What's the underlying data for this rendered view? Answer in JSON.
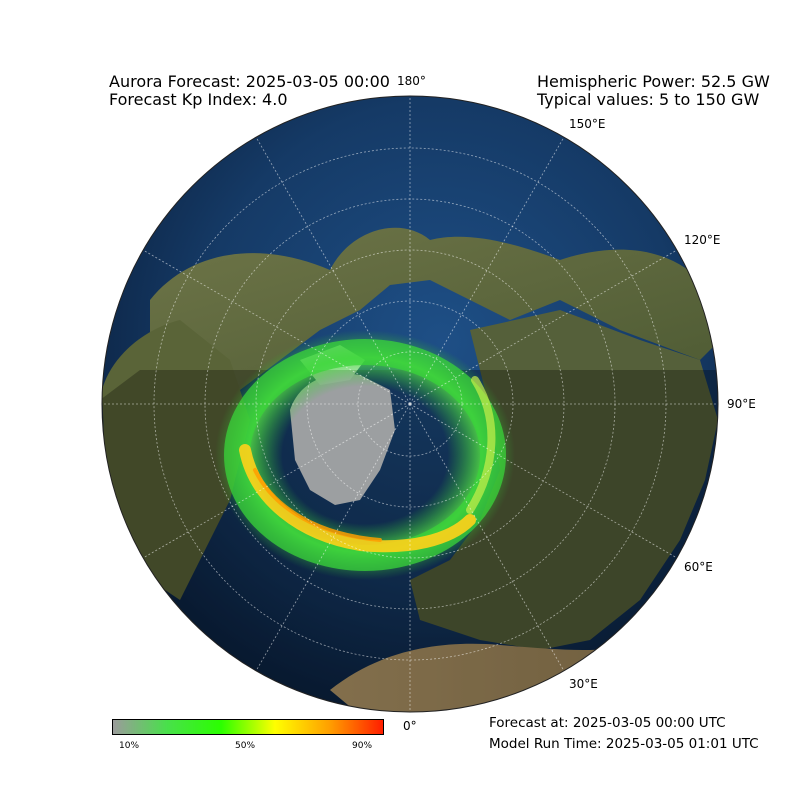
{
  "header": {
    "forecast_title": "Aurora Forecast: 2025-03-05 00:00",
    "kp_index": "Forecast Kp Index: 4.0",
    "hemispheric_power": "Hemispheric Power: 52.5 GW",
    "typical_values": "Typical values: 5 to 150 GW"
  },
  "map": {
    "projection": "north-polar-orthographic",
    "longitude_labels": [
      "180°",
      "150°E",
      "120°E",
      "90°E",
      "60°E",
      "30°E",
      "0°"
    ],
    "aurora_colors": [
      "#8c8c8c",
      "#33dd33",
      "#ffff00",
      "#ff2a00"
    ]
  },
  "colorbar": {
    "tick_labels": [
      "10%",
      "50%",
      "90%"
    ],
    "colors": [
      "#9b9b9b",
      "#49e04b",
      "#2bff00",
      "#ffff00",
      "#ffa000",
      "#ff1e00"
    ]
  },
  "footer": {
    "forecast_at": "Forecast at: 2025-03-05 00:00 UTC",
    "model_run": "Model Run Time: 2025-03-05 01:01 UTC"
  }
}
